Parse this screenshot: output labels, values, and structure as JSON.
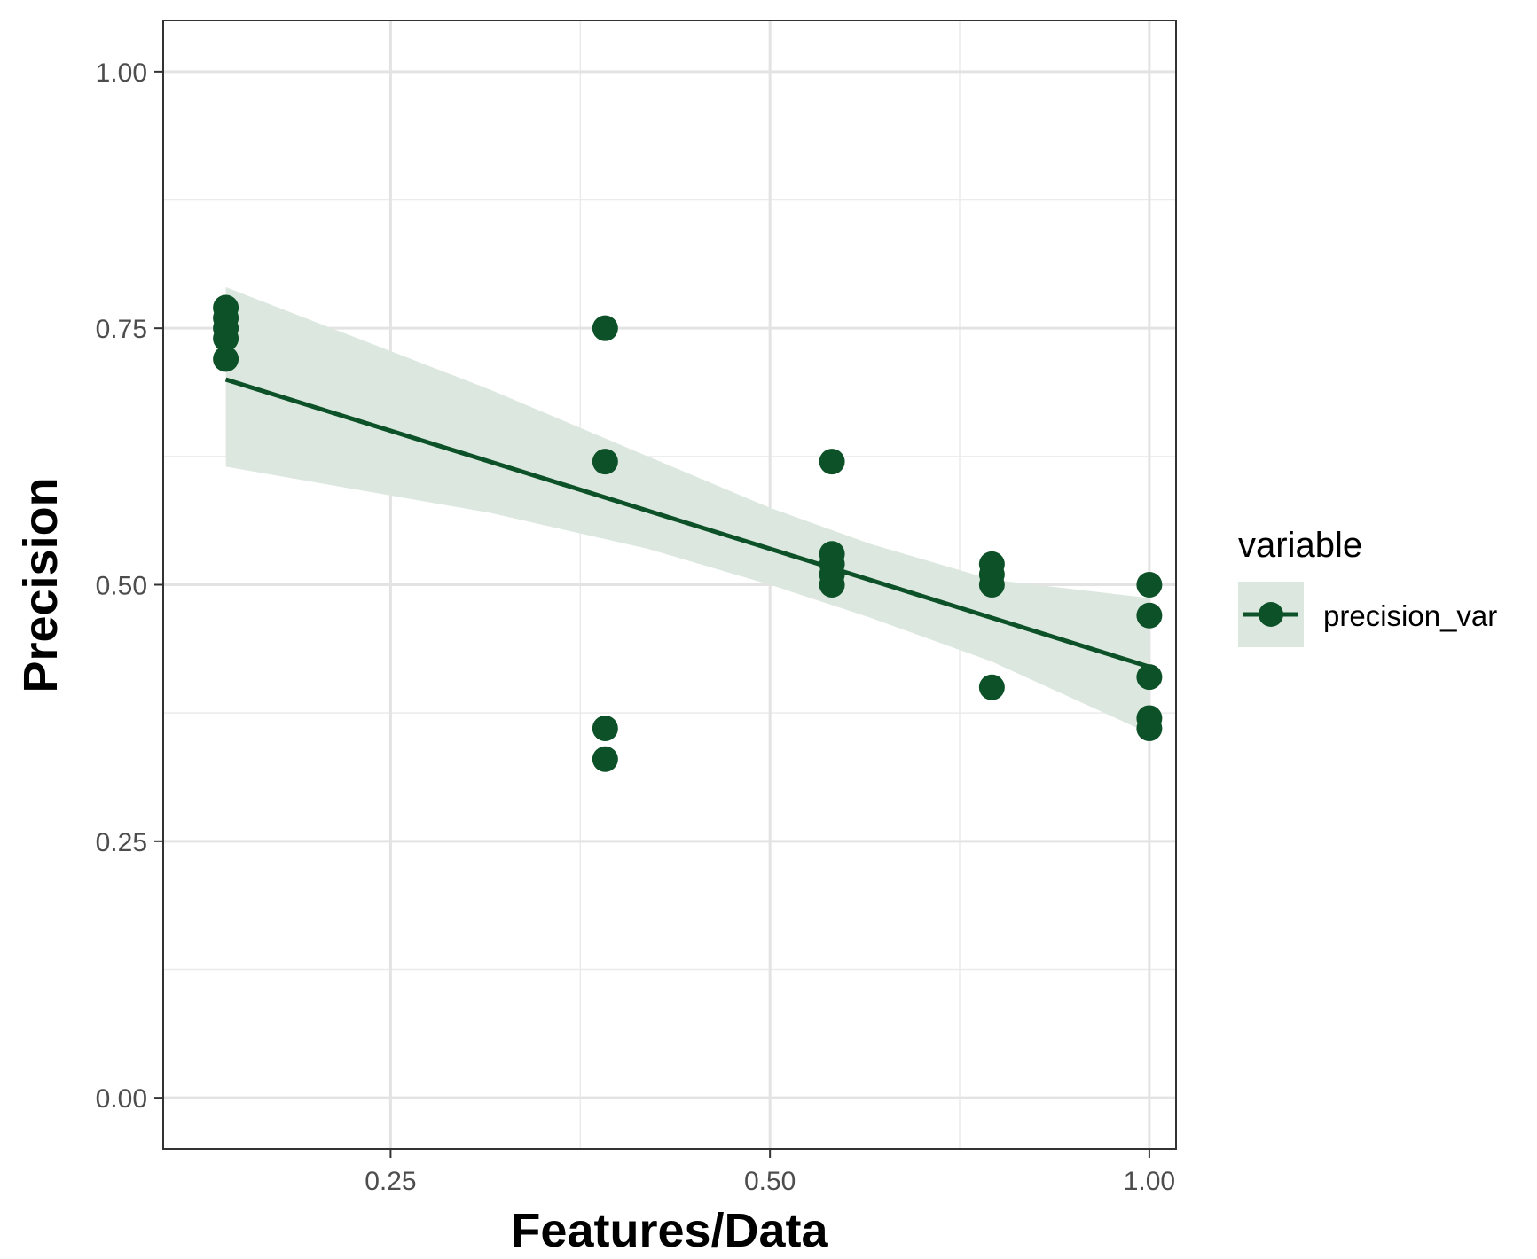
{
  "chart_data": {
    "type": "scatter",
    "title": "",
    "xlabel": "Features/Data",
    "ylabel": "Precision",
    "x_scale": "log",
    "xlim": [
      0.165,
      1.05
    ],
    "ylim": [
      -0.05,
      1.05
    ],
    "x_ticks": [
      {
        "value": 0.25,
        "label": "0.25"
      },
      {
        "value": 0.5,
        "label": "0.50"
      },
      {
        "value": 1.0,
        "label": "1.00"
      }
    ],
    "y_ticks": [
      {
        "value": 0.0,
        "label": "0.00"
      },
      {
        "value": 0.25,
        "label": "0.25"
      },
      {
        "value": 0.5,
        "label": "0.50"
      },
      {
        "value": 0.75,
        "label": "0.75"
      },
      {
        "value": 1.0,
        "label": "1.00"
      }
    ],
    "grid": true,
    "legend": {
      "title": "variable",
      "position": "right"
    },
    "series": [
      {
        "name": "precision_var",
        "color": "#0d5128",
        "points": [
          {
            "x": 0.185,
            "y": 0.77
          },
          {
            "x": 0.185,
            "y": 0.76
          },
          {
            "x": 0.185,
            "y": 0.75
          },
          {
            "x": 0.185,
            "y": 0.74
          },
          {
            "x": 0.185,
            "y": 0.72
          },
          {
            "x": 0.37,
            "y": 0.75
          },
          {
            "x": 0.37,
            "y": 0.62
          },
          {
            "x": 0.37,
            "y": 0.36
          },
          {
            "x": 0.37,
            "y": 0.33
          },
          {
            "x": 0.56,
            "y": 0.62
          },
          {
            "x": 0.56,
            "y": 0.53
          },
          {
            "x": 0.56,
            "y": 0.52
          },
          {
            "x": 0.56,
            "y": 0.51
          },
          {
            "x": 0.56,
            "y": 0.5
          },
          {
            "x": 0.75,
            "y": 0.52
          },
          {
            "x": 0.75,
            "y": 0.51
          },
          {
            "x": 0.75,
            "y": 0.5
          },
          {
            "x": 0.75,
            "y": 0.4
          },
          {
            "x": 1.0,
            "y": 0.5
          },
          {
            "x": 1.0,
            "y": 0.47
          },
          {
            "x": 1.0,
            "y": 0.41
          },
          {
            "x": 1.0,
            "y": 0.37
          },
          {
            "x": 1.0,
            "y": 0.36
          }
        ],
        "trend": {
          "type": "linear",
          "line": [
            {
              "x": 0.185,
              "y": 0.7
            },
            {
              "x": 1.0,
              "y": 0.42
            }
          ],
          "band": [
            {
              "x": 0.185,
              "lower": 0.615,
              "upper": 0.79
            },
            {
              "x": 0.3,
              "lower": 0.57,
              "upper": 0.69
            },
            {
              "x": 0.4,
              "lower": 0.535,
              "upper": 0.625
            },
            {
              "x": 0.5,
              "lower": 0.5,
              "upper": 0.575
            },
            {
              "x": 0.6,
              "lower": 0.468,
              "upper": 0.54
            },
            {
              "x": 0.75,
              "lower": 0.425,
              "upper": 0.505
            },
            {
              "x": 1.0,
              "lower": 0.355,
              "upper": 0.487
            }
          ],
          "band_color": "#dce8df"
        }
      }
    ]
  }
}
